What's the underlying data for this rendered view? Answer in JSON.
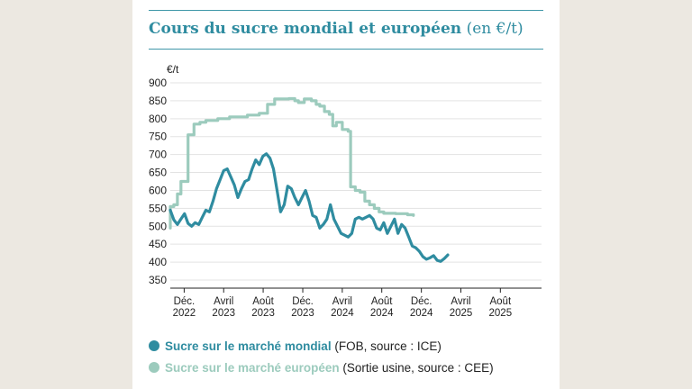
{
  "title": {
    "bold": "Cours du sucre mondial et européen",
    "light": "(en €/t)"
  },
  "colors": {
    "world": "#2f8ca0",
    "europe": "#9ccbbd",
    "grid": "#e3e3e3",
    "axis": "#222222"
  },
  "legend": [
    {
      "key": "world",
      "name": "Sucre sur le marché mondial",
      "source": "(FOB, source : ICE)"
    },
    {
      "key": "europe",
      "name": "Sucre sur le marché européen",
      "source": "(Sortie usine, source : CEE)"
    }
  ],
  "chart_data": {
    "type": "line",
    "ylabel": "€/t",
    "ylim": [
      350,
      900
    ],
    "yticks": [
      350,
      400,
      450,
      500,
      550,
      600,
      650,
      700,
      750,
      800,
      850,
      900
    ],
    "xlim": [
      2022.8,
      2025.93
    ],
    "xticks": [
      {
        "x": 2022.917,
        "line1": "Déc.",
        "line2": "2022"
      },
      {
        "x": 2023.25,
        "line1": "Avril",
        "line2": "2023"
      },
      {
        "x": 2023.583,
        "line1": "Août",
        "line2": "2023"
      },
      {
        "x": 2023.917,
        "line1": "Déc.",
        "line2": "2023"
      },
      {
        "x": 2024.25,
        "line1": "Avril",
        "line2": "2024"
      },
      {
        "x": 2024.583,
        "line1": "Août",
        "line2": "2024"
      },
      {
        "x": 2024.917,
        "line1": "Déc.",
        "line2": "2024"
      },
      {
        "x": 2025.25,
        "line1": "Avril",
        "line2": "2025"
      },
      {
        "x": 2025.583,
        "line1": "Août",
        "line2": "2025"
      }
    ],
    "grid": true,
    "series": [
      {
        "key": "world",
        "name": "Sucre sur le marché mondial",
        "step": false,
        "points": [
          [
            2022.8,
            545
          ],
          [
            2022.83,
            518
          ],
          [
            2022.86,
            505
          ],
          [
            2022.89,
            520
          ],
          [
            2022.92,
            535
          ],
          [
            2022.95,
            508
          ],
          [
            2022.98,
            500
          ],
          [
            2023.01,
            510
          ],
          [
            2023.04,
            505
          ],
          [
            2023.07,
            525
          ],
          [
            2023.1,
            545
          ],
          [
            2023.13,
            540
          ],
          [
            2023.16,
            570
          ],
          [
            2023.19,
            605
          ],
          [
            2023.22,
            630
          ],
          [
            2023.25,
            655
          ],
          [
            2023.28,
            660
          ],
          [
            2023.31,
            638
          ],
          [
            2023.34,
            615
          ],
          [
            2023.37,
            580
          ],
          [
            2023.4,
            605
          ],
          [
            2023.43,
            625
          ],
          [
            2023.46,
            630
          ],
          [
            2023.49,
            660
          ],
          [
            2023.52,
            685
          ],
          [
            2023.55,
            672
          ],
          [
            2023.58,
            695
          ],
          [
            2023.61,
            702
          ],
          [
            2023.64,
            690
          ],
          [
            2023.67,
            660
          ],
          [
            2023.7,
            600
          ],
          [
            2023.73,
            540
          ],
          [
            2023.76,
            560
          ],
          [
            2023.79,
            612
          ],
          [
            2023.82,
            605
          ],
          [
            2023.85,
            580
          ],
          [
            2023.88,
            560
          ],
          [
            2023.91,
            580
          ],
          [
            2023.94,
            600
          ],
          [
            2023.97,
            570
          ],
          [
            2024.0,
            530
          ],
          [
            2024.03,
            525
          ],
          [
            2024.06,
            495
          ],
          [
            2024.09,
            505
          ],
          [
            2024.12,
            520
          ],
          [
            2024.15,
            560
          ],
          [
            2024.18,
            520
          ],
          [
            2024.21,
            500
          ],
          [
            2024.24,
            480
          ],
          [
            2024.27,
            475
          ],
          [
            2024.3,
            470
          ],
          [
            2024.33,
            480
          ],
          [
            2024.36,
            520
          ],
          [
            2024.39,
            525
          ],
          [
            2024.42,
            520
          ],
          [
            2024.45,
            525
          ],
          [
            2024.48,
            530
          ],
          [
            2024.51,
            520
          ],
          [
            2024.54,
            495
          ],
          [
            2024.57,
            490
          ],
          [
            2024.6,
            510
          ],
          [
            2024.63,
            480
          ],
          [
            2024.66,
            500
          ],
          [
            2024.69,
            520
          ],
          [
            2024.72,
            480
          ],
          [
            2024.75,
            505
          ],
          [
            2024.78,
            495
          ],
          [
            2024.81,
            470
          ],
          [
            2024.84,
            445
          ],
          [
            2024.87,
            440
          ],
          [
            2024.9,
            430
          ],
          [
            2024.93,
            415
          ],
          [
            2024.96,
            408
          ],
          [
            2024.99,
            412
          ],
          [
            2025.02,
            418
          ],
          [
            2025.05,
            405
          ],
          [
            2025.08,
            402
          ],
          [
            2025.11,
            410
          ],
          [
            2025.14,
            420
          ]
        ]
      },
      {
        "key": "europe",
        "name": "Sucre sur le marché européen",
        "step": true,
        "points": [
          [
            2022.8,
            495
          ],
          [
            2022.8,
            555
          ],
          [
            2022.83,
            560
          ],
          [
            2022.86,
            590
          ],
          [
            2022.89,
            625
          ],
          [
            2022.92,
            625
          ],
          [
            2022.95,
            755
          ],
          [
            2023.0,
            785
          ],
          [
            2023.05,
            790
          ],
          [
            2023.1,
            795
          ],
          [
            2023.2,
            800
          ],
          [
            2023.3,
            805
          ],
          [
            2023.45,
            810
          ],
          [
            2023.55,
            815
          ],
          [
            2023.62,
            840
          ],
          [
            2023.68,
            855
          ],
          [
            2023.8,
            856
          ],
          [
            2023.85,
            850
          ],
          [
            2023.88,
            845
          ],
          [
            2023.93,
            855
          ],
          [
            2023.99,
            850
          ],
          [
            2024.03,
            840
          ],
          [
            2024.06,
            835
          ],
          [
            2024.1,
            820
          ],
          [
            2024.14,
            812
          ],
          [
            2024.17,
            780
          ],
          [
            2024.2,
            790
          ],
          [
            2024.25,
            770
          ],
          [
            2024.3,
            765
          ],
          [
            2024.32,
            610
          ],
          [
            2024.36,
            600
          ],
          [
            2024.4,
            595
          ],
          [
            2024.44,
            570
          ],
          [
            2024.48,
            560
          ],
          [
            2024.52,
            550
          ],
          [
            2024.56,
            540
          ],
          [
            2024.6,
            536
          ],
          [
            2024.7,
            535
          ],
          [
            2024.8,
            532
          ],
          [
            2024.85,
            530
          ]
        ]
      }
    ]
  }
}
